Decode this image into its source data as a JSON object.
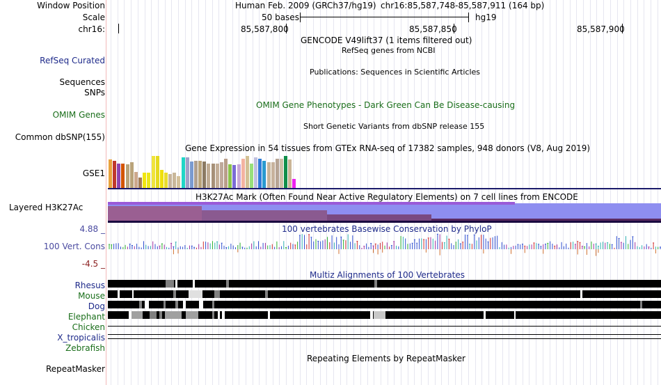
{
  "header": {
    "window_position_label": "Window Position",
    "scale_label": "Scale",
    "chrom_label": "chr16:",
    "assembly_text": "Human Feb. 2009 (GRCh37/hg19)",
    "position_text": "chr16:85,587,748-85,587,911 (164 bp)",
    "scale_text": "50 bases",
    "db_text": "hg19",
    "ruler_ticks": [
      "85,587,800",
      "85,587,850",
      "85,587,900"
    ]
  },
  "tracks": {
    "gencode": "GENCODE V49lift37 (1 items filtered out)",
    "refseq_label": "RefSeq Curated",
    "refseq_desc": "RefSeq genes from NCBI",
    "publications_desc": "Publications: Sequences in Scientific Articles",
    "sequences_label": "Sequences",
    "snps_label": "SNPs",
    "omim_label": "OMIM Genes",
    "omim_desc": "OMIM Gene Phenotypes - Dark Green Can Be Disease-causing",
    "dbsnp_label": "Common dbSNP(155)",
    "dbsnp_desc": "Short Genetic Variants from dbSNP release 155",
    "gtex_desc": "Gene Expression in 54 tissues from GTEx RNA-seq of 17382 samples, 948 donors (V8, Aug 2019)",
    "gtex_gene": "GSE1",
    "h3k27ac_label": "Layered H3K27Ac",
    "h3k27ac_desc": "H3K27Ac Mark (Often Found Near Active Regulatory Elements) on 7 cell lines from ENCODE",
    "cons_max": "4.88 _",
    "cons_label": "100 Vert. Cons",
    "cons_min": "-4.5 _",
    "cons_desc": "100 vertebrates Basewise Conservation by PhyloP",
    "multiz_desc": "Multiz Alignments of 100 Vertebrates",
    "repeatmasker_label": "RepeatMasker",
    "repeatmasker_desc": "Repeating Elements by RepeatMasker"
  },
  "species": [
    {
      "name": "Rhesus",
      "color": "#1e2a8a"
    },
    {
      "name": "Mouse",
      "color": "#1a6e1a"
    },
    {
      "name": "Dog",
      "color": "#1e2a8a"
    },
    {
      "name": "Elephant",
      "color": "#1a6e1a"
    },
    {
      "name": "Chicken",
      "color": "#1a6e1a"
    },
    {
      "name": "X_tropicalis",
      "color": "#1e2a8a"
    },
    {
      "name": "Zebrafish",
      "color": "#1a6e1a"
    }
  ],
  "gtex_colors": [
    "#e8a23c",
    "#c0392b",
    "#8e44ad",
    "#d35400",
    "#b9a37a",
    "#b9a37a",
    "#cda88c",
    "#a67c52",
    "#f1e60f",
    "#ece71a",
    "#f0e43a",
    "#e5da1e",
    "#efe00c",
    "#eadc2d",
    "#c6b49c",
    "#c9b79a",
    "#d4c19a",
    "#1fd6c7",
    "#a0a0c8",
    "#7a9ad0",
    "#b0a090",
    "#b9a37a",
    "#8b7a63",
    "#c0ac94",
    "#a69078",
    "#c3ae98",
    "#bfa99b",
    "#b99e8a",
    "#8bc34a",
    "#7b6cd6",
    "#c7a7d8",
    "#f4b3a0",
    "#d2c094",
    "#98e07a",
    "#c0c0e0",
    "#2e7bd8",
    "#2a9ad0",
    "#c8b49a",
    "#c7b29c",
    "#b7a494",
    "#cfc0a8",
    "#118e4a",
    "#cbb596",
    "#ed22ef"
  ],
  "gtex_heights": [
    0.85,
    0.82,
    0.72,
    0.72,
    0.7,
    0.78,
    0.48,
    0.32,
    0.45,
    0.45,
    0.95,
    0.95,
    0.55,
    0.45,
    0.42,
    0.45,
    0.35,
    0.92,
    0.92,
    0.8,
    0.82,
    0.82,
    0.8,
    0.72,
    0.72,
    0.72,
    0.78,
    0.88,
    0.7,
    0.68,
    0.7,
    0.88,
    0.95,
    0.72,
    0.92,
    0.88,
    0.82,
    0.78,
    0.78,
    0.88,
    0.88,
    0.95,
    0.85,
    0.28
  ]
}
